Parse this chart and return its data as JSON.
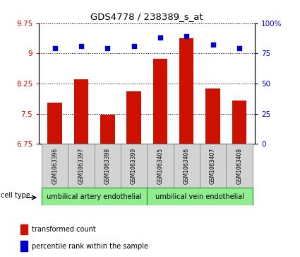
{
  "title": "GDS4778 / 238389_s_at",
  "samples": [
    "GSM1063396",
    "GSM1063397",
    "GSM1063398",
    "GSM1063399",
    "GSM1063405",
    "GSM1063406",
    "GSM1063407",
    "GSM1063408"
  ],
  "transformed_count": [
    7.78,
    8.35,
    7.48,
    8.06,
    8.87,
    9.38,
    8.12,
    7.82
  ],
  "percentile_rank": [
    79,
    81,
    79,
    81,
    88,
    89,
    82,
    79
  ],
  "ylim_left": [
    6.75,
    9.75
  ],
  "ylim_right": [
    0,
    100
  ],
  "yticks_left": [
    6.75,
    7.5,
    8.25,
    9.0,
    9.75
  ],
  "yticks_left_labels": [
    "6.75",
    "7.5",
    "8.25",
    "9",
    "9.75"
  ],
  "yticks_right": [
    0,
    25,
    50,
    75,
    100
  ],
  "yticks_right_labels": [
    "0",
    "25",
    "50",
    "75",
    "100%"
  ],
  "bar_color": "#cc1100",
  "dot_color": "#0000cc",
  "cell_type_groups": [
    {
      "label": "umbilical artery endothelial",
      "start": 0,
      "end": 3
    },
    {
      "label": "umbilical vein endothelial",
      "start": 4,
      "end": 7
    }
  ],
  "group_color": "#90ee90",
  "group_edge_color": "#228B22",
  "legend_bar_label": "transformed count",
  "legend_dot_label": "percentile rank within the sample",
  "cell_type_label": "cell type",
  "tick_area_bg": "#d3d3d3",
  "tick_area_edge": "#888888"
}
